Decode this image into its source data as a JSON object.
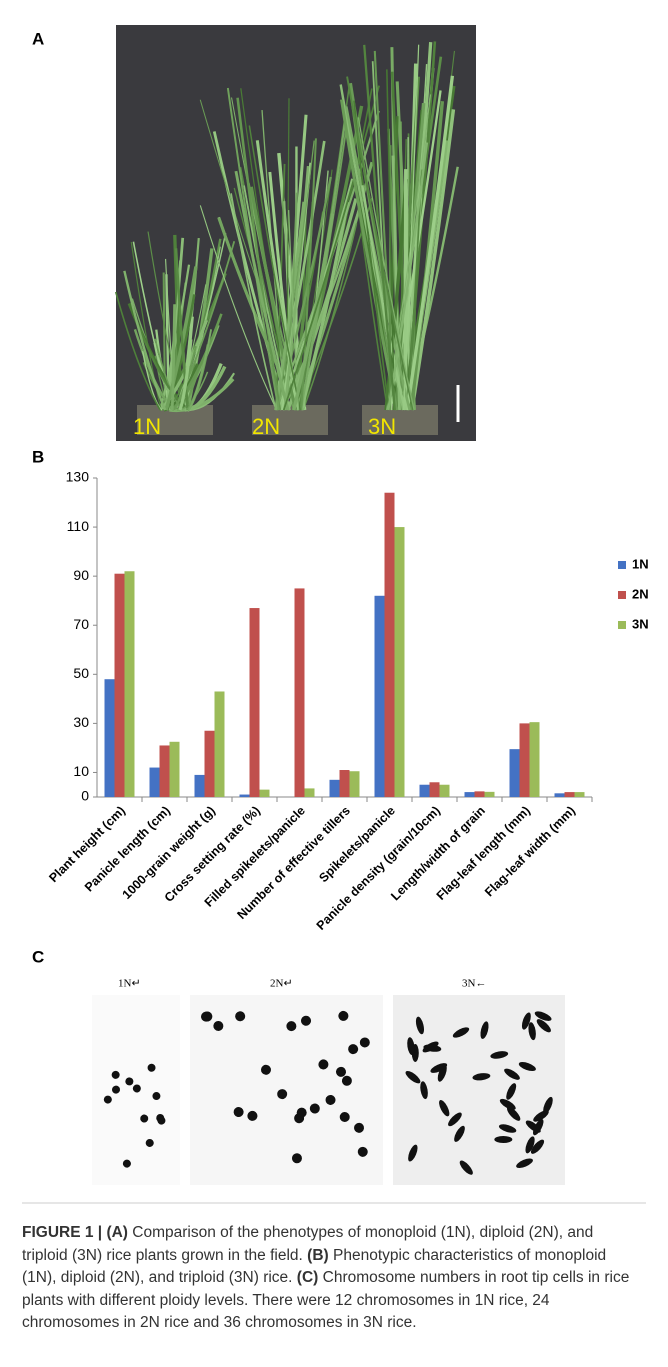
{
  "panels": {
    "a": {
      "label": "A",
      "plants": [
        "1N",
        "2N",
        "3N"
      ]
    },
    "b": {
      "label": "B"
    },
    "c": {
      "label": "C",
      "cells": [
        "1N↵",
        "2N↵",
        "3N←"
      ]
    }
  },
  "chart_data": {
    "type": "bar",
    "categories": [
      "Plant height (cm)",
      "Panicle length (cm)",
      "1000-grain weight (g)",
      "Cross setting rate (%)",
      "Filled spikelets/panicle",
      "Number of effective tillers",
      "Spikelets/panicle",
      "Panicle density (grain/10cm)",
      "Length/width of grain",
      "Flag-leaf length (mm)",
      "Flag-leaf width (mm)"
    ],
    "series": [
      {
        "name": "1N",
        "color": "#4472c4",
        "values": [
          48,
          12,
          9,
          1,
          0,
          7,
          82,
          5,
          2,
          19.5,
          1.5
        ]
      },
      {
        "name": "2N",
        "color": "#c0504d",
        "values": [
          91,
          21,
          27,
          77,
          85,
          11,
          124,
          6,
          2.3,
          30,
          2
        ]
      },
      {
        "name": "3N",
        "color": "#9bbb59",
        "values": [
          92,
          22.5,
          43,
          3,
          3.5,
          10.5,
          110,
          5,
          2.1,
          30.5,
          2
        ]
      }
    ],
    "ylim": [
      0,
      130
    ],
    "yticks": [
      0,
      10,
      30,
      50,
      70,
      90,
      110,
      130
    ],
    "legend": "right"
  },
  "caption": {
    "label": "FIGURE 1 |",
    "parts": [
      {
        "tag": "(A)",
        "text": "Comparison of the phenotypes of monoploid (1N), diploid (2N), and triploid (3N) rice plants grown in the field."
      },
      {
        "tag": "(B)",
        "text": "Phenotypic characteristics of monoploid (1N), diploid (2N), and triploid (3N) rice."
      },
      {
        "tag": "(C)",
        "text": "Chromosome numbers in root tip cells in rice plants with different ploidy levels. There were 12 chromosomes in 1N rice, 24 chromosomes in 2N rice and 36 chromosomes in 3N rice."
      }
    ]
  }
}
